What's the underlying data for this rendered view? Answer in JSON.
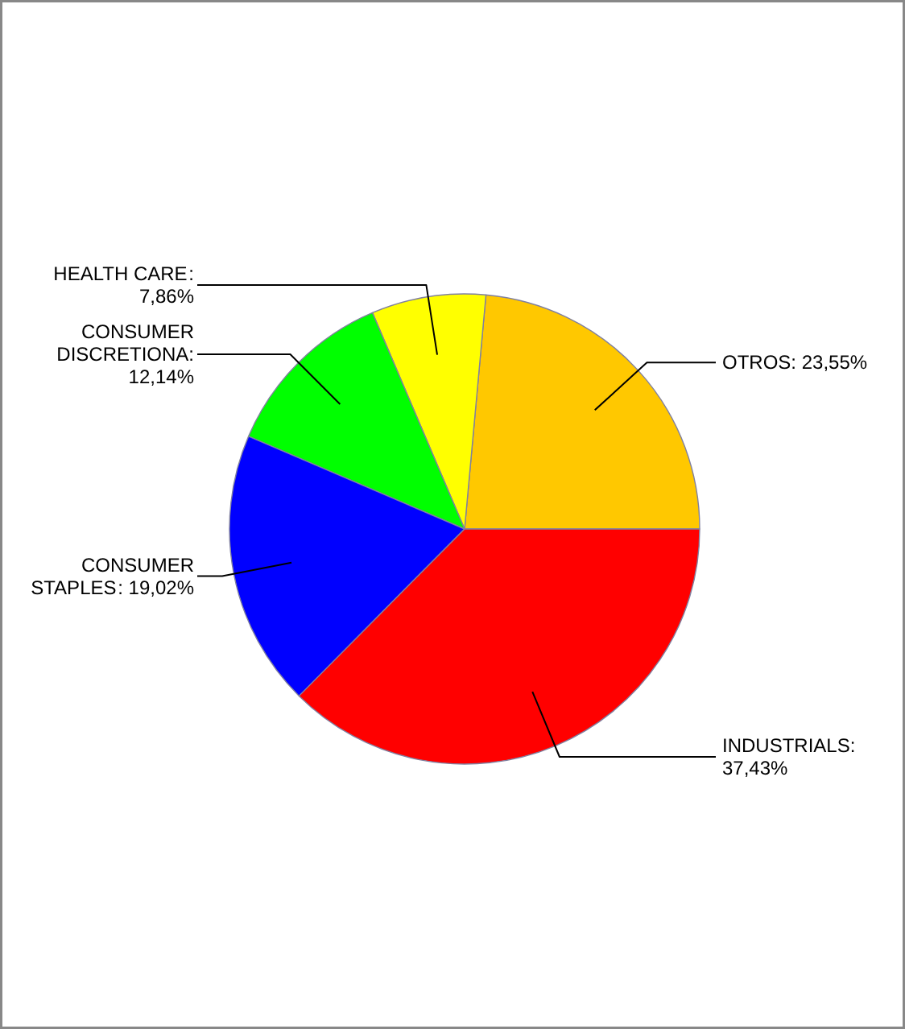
{
  "chart_data": {
    "type": "pie",
    "categories": [
      "OTROS",
      "HEALTH CARE",
      "CONSUMER DISCRETIONA",
      "CONSUMER STAPLES",
      "INDUSTRIALS"
    ],
    "values": [
      23.55,
      7.86,
      12.14,
      19.02,
      37.43
    ],
    "colors": [
      "#ffc800",
      "#ffff00",
      "#00ff00",
      "#0000ff",
      "#ff0000"
    ],
    "value_labels": [
      ": 23,55%",
      ": 7,86%",
      ": 12,14%",
      ": 19,02%",
      ": 37,43%"
    ]
  }
}
